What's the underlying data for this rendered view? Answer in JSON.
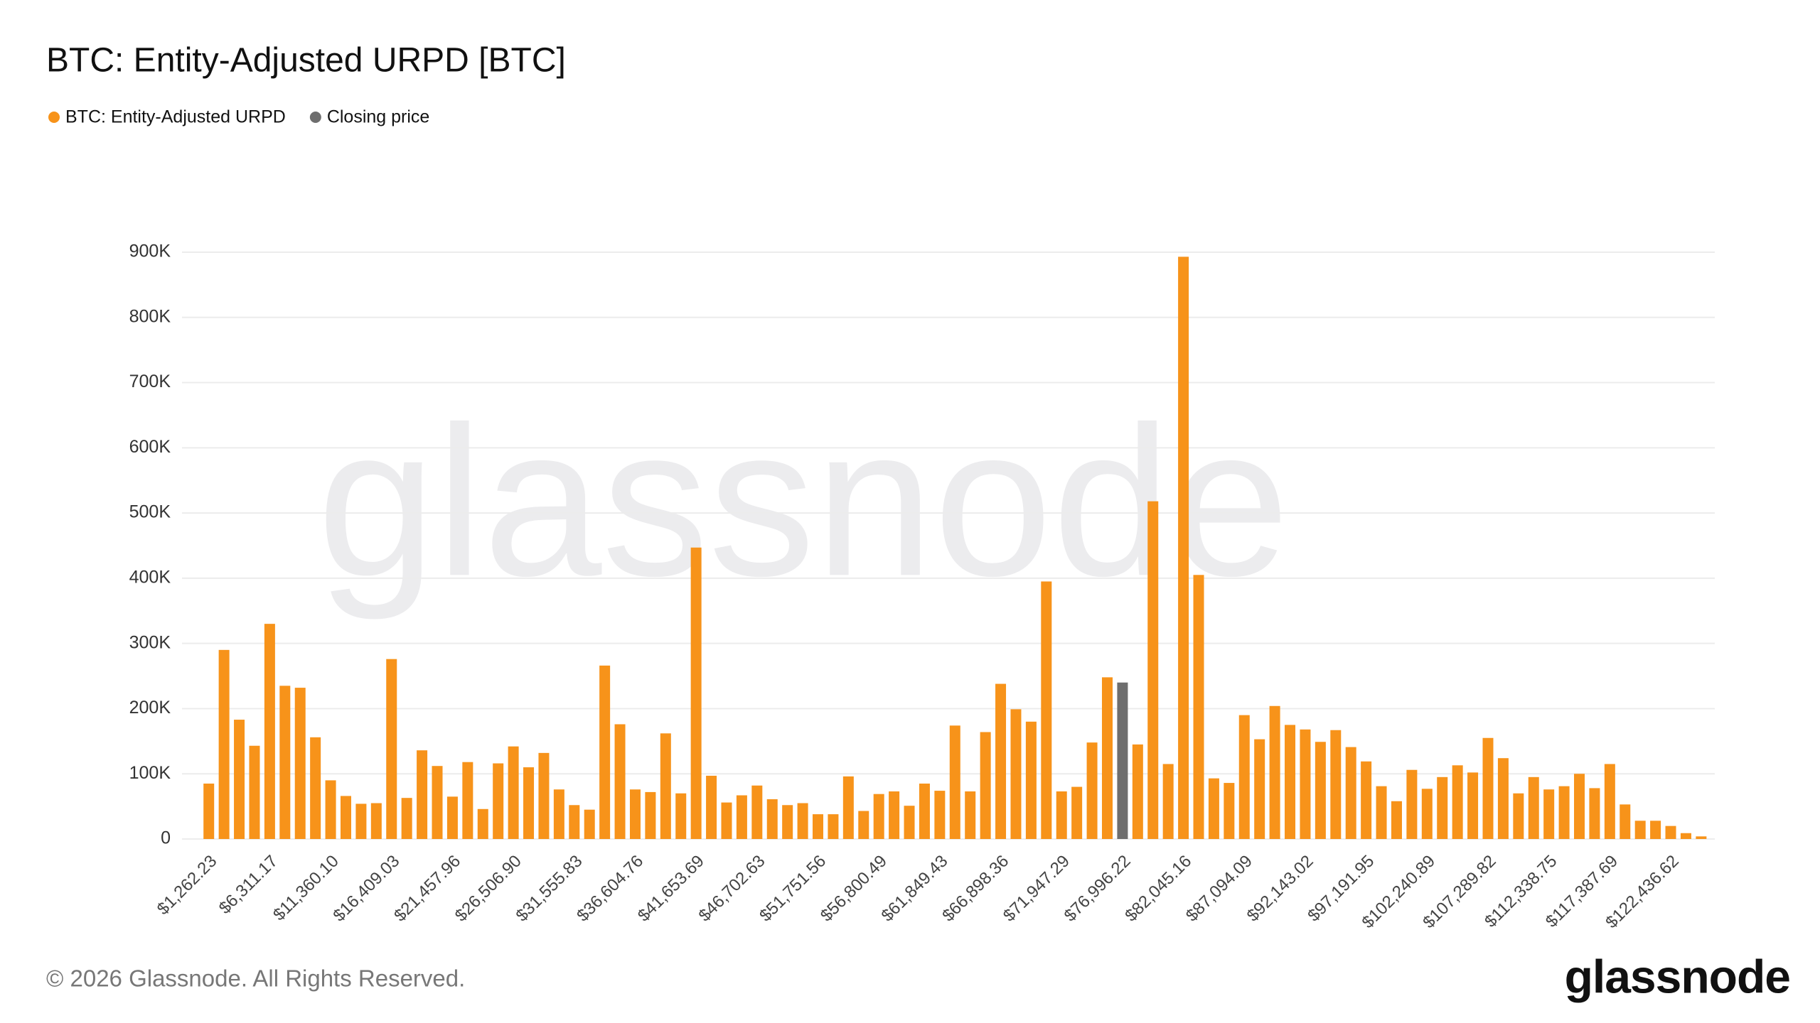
{
  "chart_data": {
    "type": "bar",
    "title": "BTC: Entity-Adjusted URPD [BTC]",
    "categories": [
      "$1,262.23",
      null,
      null,
      null,
      "$6,311.17",
      null,
      null,
      null,
      "$11,360.10",
      null,
      null,
      null,
      "$16,409.03",
      null,
      null,
      null,
      "$21,457.96",
      null,
      null,
      null,
      "$26,506.90",
      null,
      null,
      null,
      "$31,555.83",
      null,
      null,
      null,
      "$36,604.76",
      null,
      null,
      null,
      "$41,653.69",
      null,
      null,
      null,
      "$46,702.63",
      null,
      null,
      null,
      "$51,751.56",
      null,
      null,
      null,
      "$56,800.49",
      null,
      null,
      null,
      "$61,849.43",
      null,
      null,
      null,
      "$66,898.36",
      null,
      null,
      null,
      "$71,947.29",
      null,
      null,
      null,
      "$76,996.22",
      null,
      null,
      null,
      "$82,045.16",
      null,
      null,
      null,
      "$87,094.09",
      null,
      null,
      null,
      "$92,143.02",
      null,
      null,
      null,
      "$97,191.95",
      null,
      null,
      null,
      "$102,240.89",
      null,
      null,
      null,
      "$107,289.82",
      null,
      null,
      null,
      "$112,338.75",
      null,
      null,
      null,
      "$117,387.69",
      null,
      null,
      null,
      "$122,436.62",
      null,
      null
    ],
    "series": [
      {
        "name": "BTC: Entity-Adjusted URPD",
        "color": "#f7931a",
        "values": [
          85000,
          290000,
          183000,
          143000,
          330000,
          235000,
          232000,
          156000,
          90000,
          66000,
          54000,
          55000,
          276000,
          63000,
          136000,
          112000,
          65000,
          118000,
          46000,
          116000,
          142000,
          110000,
          132000,
          76000,
          52000,
          45000,
          266000,
          176000,
          76000,
          72000,
          162000,
          70000,
          447000,
          97000,
          56000,
          67000,
          82000,
          61000,
          52000,
          55000,
          38000,
          38000,
          96000,
          43000,
          69000,
          73000,
          51000,
          85000,
          74000,
          174000,
          73000,
          164000,
          238000,
          199000,
          180000,
          395000,
          73000,
          80000,
          148000,
          248000,
          null,
          145000,
          518000,
          115000,
          893000,
          405000,
          93000,
          86000,
          190000,
          153000,
          204000,
          175000,
          168000,
          149000,
          167000,
          141000,
          119000,
          81000,
          58000,
          106000,
          77000,
          95000,
          113000,
          102000,
          155000,
          124000,
          70000,
          95000,
          76000,
          81000,
          100000,
          78000,
          115000,
          53000,
          28000,
          28000,
          20000,
          9000,
          4000
        ]
      },
      {
        "name": "Closing price",
        "color": "#6e6e6e",
        "values": [
          null,
          null,
          null,
          null,
          null,
          null,
          null,
          null,
          null,
          null,
          null,
          null,
          null,
          null,
          null,
          null,
          null,
          null,
          null,
          null,
          null,
          null,
          null,
          null,
          null,
          null,
          null,
          null,
          null,
          null,
          null,
          null,
          null,
          null,
          null,
          null,
          null,
          null,
          null,
          null,
          null,
          null,
          null,
          null,
          null,
          null,
          null,
          null,
          null,
          null,
          null,
          null,
          null,
          null,
          null,
          null,
          null,
          null,
          null,
          null,
          240000,
          null,
          null,
          null,
          null,
          null,
          null,
          null,
          null,
          null,
          null,
          null,
          null,
          null,
          null,
          null,
          null,
          null,
          null,
          null,
          null,
          null,
          null,
          null,
          null,
          null,
          null,
          null,
          null,
          null,
          null,
          null,
          null,
          null,
          null,
          null,
          null,
          null,
          null
        ]
      }
    ],
    "ylim": [
      0,
      900000
    ],
    "yticks": [
      0,
      {
        "value": 100000,
        "label": "100K"
      },
      {
        "value": 200000,
        "label": "200K"
      },
      {
        "value": 300000,
        "label": "300K"
      },
      {
        "value": 400000,
        "label": "400K"
      },
      {
        "value": 500000,
        "label": "500K"
      },
      {
        "value": 600000,
        "label": "600K"
      },
      {
        "value": 700000,
        "label": "700K"
      },
      {
        "value": 800000,
        "label": "800K"
      },
      {
        "value": 900000,
        "label": "900K"
      }
    ],
    "grid": true,
    "legend": "top-left",
    "watermark": "glassnode",
    "copyright": "© 2026 Glassnode. All Rights Reserved.",
    "logo": "glassnode"
  }
}
